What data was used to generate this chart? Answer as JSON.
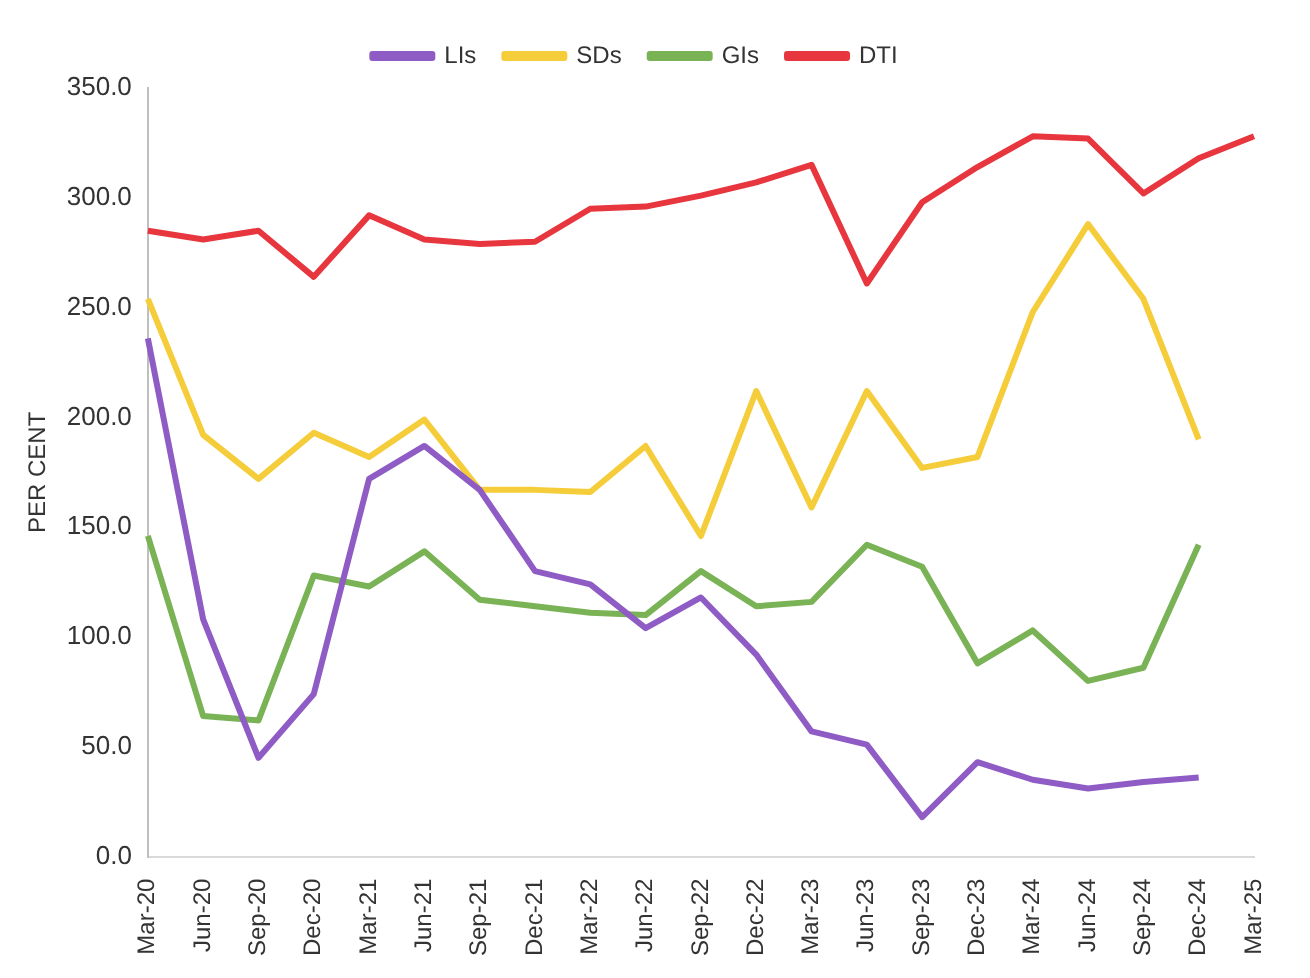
{
  "chart_data": {
    "type": "line",
    "ylabel": "PER CENT",
    "categories": [
      "Mar-20",
      "Jun-20",
      "Sep-20",
      "Dec-20",
      "Mar-21",
      "Jun-21",
      "Sep-21",
      "Dec-21",
      "Mar-22",
      "Jun-22",
      "Sep-22",
      "Dec-22",
      "Mar-23",
      "Jun-23",
      "Sep-23",
      "Dec-23",
      "Mar-24",
      "Jun-24",
      "Sep-24",
      "Dec-24",
      "Mar-25"
    ],
    "series": [
      {
        "name": "LIs",
        "color": "#8e5cc4",
        "values": [
          236,
          108,
          45,
          74,
          172,
          187,
          167,
          130,
          124,
          104,
          118,
          92,
          57,
          51,
          18,
          43,
          35,
          31,
          34,
          36,
          null
        ]
      },
      {
        "name": "SDs",
        "color": "#f5cd3a",
        "values": [
          254,
          192,
          172,
          193,
          182,
          199,
          167,
          167,
          166,
          187,
          146,
          212,
          159,
          212,
          177,
          182,
          248,
          288,
          254,
          190,
          null
        ]
      },
      {
        "name": "GIs",
        "color": "#79b356",
        "values": [
          146,
          64,
          62,
          128,
          123,
          139,
          117,
          114,
          111,
          110,
          130,
          114,
          116,
          142,
          132,
          88,
          103,
          80,
          86,
          142,
          null
        ]
      },
      {
        "name": "DTI",
        "color": "#e8363e",
        "values": [
          285,
          281,
          285,
          264,
          292,
          281,
          279,
          280,
          295,
          296,
          301,
          307,
          315,
          261,
          298,
          314,
          328,
          327,
          302,
          318,
          328
        ]
      }
    ],
    "ylim": [
      0,
      350
    ],
    "yticks": [
      {
        "value": 0,
        "label": "0.0"
      },
      {
        "value": 50,
        "label": "50.0"
      },
      {
        "value": 100,
        "label": "100.0"
      },
      {
        "value": 150,
        "label": "150.0"
      },
      {
        "value": 200,
        "label": "200.0"
      },
      {
        "value": 250,
        "label": "250.0"
      },
      {
        "value": 300,
        "label": "300.0"
      },
      {
        "value": 350,
        "label": "350.0"
      }
    ],
    "grid": false,
    "legend": "top",
    "marker": "none",
    "line_style": "solid"
  }
}
